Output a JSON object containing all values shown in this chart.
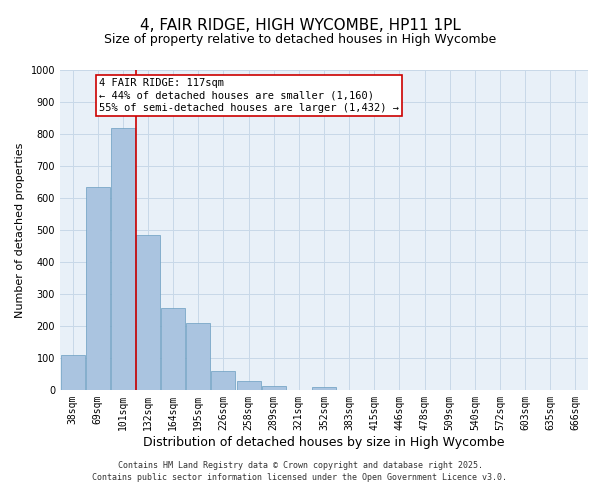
{
  "title": "4, FAIR RIDGE, HIGH WYCOMBE, HP11 1PL",
  "subtitle": "Size of property relative to detached houses in High Wycombe",
  "xlabel": "Distribution of detached houses by size in High Wycombe",
  "ylabel": "Number of detached properties",
  "bin_labels": [
    "38sqm",
    "69sqm",
    "101sqm",
    "132sqm",
    "164sqm",
    "195sqm",
    "226sqm",
    "258sqm",
    "289sqm",
    "321sqm",
    "352sqm",
    "383sqm",
    "415sqm",
    "446sqm",
    "478sqm",
    "509sqm",
    "540sqm",
    "572sqm",
    "603sqm",
    "635sqm",
    "666sqm"
  ],
  "bar_values": [
    110,
    635,
    820,
    485,
    255,
    210,
    60,
    28,
    14,
    0,
    8,
    0,
    0,
    0,
    0,
    0,
    0,
    0,
    0,
    0,
    0
  ],
  "bar_color": "#aac4e0",
  "bar_edgecolor": "#6a9ec0",
  "vline_x_index": 2.52,
  "vline_color": "#cc0000",
  "annotation_text": "4 FAIR RIDGE: 117sqm\n← 44% of detached houses are smaller (1,160)\n55% of semi-detached houses are larger (1,432) →",
  "ylim": [
    0,
    1000
  ],
  "yticks": [
    0,
    100,
    200,
    300,
    400,
    500,
    600,
    700,
    800,
    900,
    1000
  ],
  "background_color": "#ffffff",
  "plot_bg_color": "#e8f0f8",
  "grid_color": "#c8d8e8",
  "footer_line1": "Contains HM Land Registry data © Crown copyright and database right 2025.",
  "footer_line2": "Contains public sector information licensed under the Open Government Licence v3.0.",
  "title_fontsize": 11,
  "subtitle_fontsize": 9,
  "xlabel_fontsize": 9,
  "ylabel_fontsize": 8,
  "tick_fontsize": 7,
  "annotation_fontsize": 7.5,
  "footer_fontsize": 6
}
